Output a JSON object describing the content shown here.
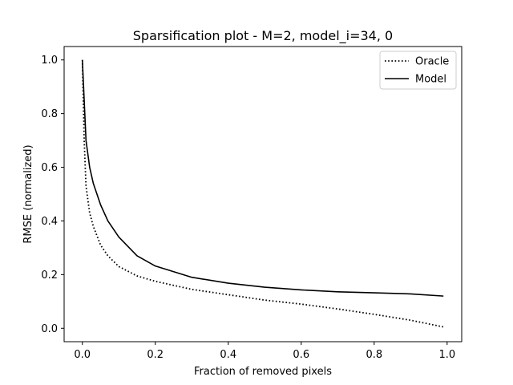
{
  "chart_data": {
    "type": "line",
    "title": "Sparsification plot - M=2, model_i=34, 0",
    "xlabel": "Fraction of removed pixels",
    "ylabel": "RMSE (normalized)",
    "xlim": [
      -0.05,
      1.04
    ],
    "ylim": [
      -0.05,
      1.05
    ],
    "xticks": [
      0.0,
      0.2,
      0.4,
      0.6,
      0.8,
      1.0
    ],
    "xtick_labels": [
      "0.0",
      "0.2",
      "0.4",
      "0.6",
      "0.8",
      "1.0"
    ],
    "yticks": [
      0.0,
      0.2,
      0.4,
      0.6,
      0.8,
      1.0
    ],
    "ytick_labels": [
      "0.0",
      "0.2",
      "0.4",
      "0.6",
      "0.8",
      "1.0"
    ],
    "grid": false,
    "legend_position": "top-right",
    "series": [
      {
        "name": "Oracle",
        "style": "dotted",
        "color": "#000000",
        "x": [
          0.0,
          0.005,
          0.01,
          0.02,
          0.03,
          0.05,
          0.07,
          0.1,
          0.15,
          0.2,
          0.3,
          0.4,
          0.5,
          0.6,
          0.7,
          0.8,
          0.9,
          0.99
        ],
        "y": [
          1.0,
          0.7,
          0.53,
          0.43,
          0.38,
          0.31,
          0.27,
          0.23,
          0.195,
          0.175,
          0.145,
          0.125,
          0.105,
          0.09,
          0.072,
          0.052,
          0.03,
          0.005
        ]
      },
      {
        "name": "Model",
        "style": "solid",
        "color": "#000000",
        "x": [
          0.0,
          0.005,
          0.01,
          0.02,
          0.03,
          0.05,
          0.07,
          0.1,
          0.15,
          0.2,
          0.3,
          0.4,
          0.5,
          0.6,
          0.7,
          0.8,
          0.9,
          0.99
        ],
        "y": [
          1.0,
          0.85,
          0.7,
          0.6,
          0.54,
          0.46,
          0.4,
          0.34,
          0.27,
          0.232,
          0.19,
          0.168,
          0.153,
          0.143,
          0.136,
          0.132,
          0.128,
          0.12
        ]
      }
    ]
  }
}
